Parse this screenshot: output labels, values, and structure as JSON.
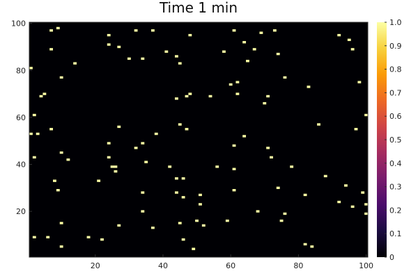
{
  "chart_data": {
    "type": "heatmap",
    "title": "Time 1 min",
    "xlabel": "",
    "ylabel": "",
    "xlim": [
      1,
      100
    ],
    "ylim": [
      1,
      100
    ],
    "x_ticks": [
      20,
      40,
      60,
      80,
      100
    ],
    "y_ticks": [
      20,
      40,
      60,
      80,
      100
    ],
    "x_tick_labels": [
      "20",
      "40",
      "60",
      "80",
      "100"
    ],
    "y_tick_labels": [
      "20",
      "40",
      "60",
      "80",
      "100"
    ],
    "grid": false,
    "background_value": 0,
    "cell_value": 1,
    "colorbar": {
      "range": [
        0,
        1
      ],
      "ticks": [
        0,
        0.1,
        0.2,
        0.3,
        0.4,
        0.5,
        0.6,
        0.7,
        0.8,
        0.9,
        1.0
      ],
      "tick_labels": [
        "0",
        "0.1",
        "0.2",
        "0.3",
        "0.4",
        "0.5",
        "0.6",
        "0.7",
        "0.8",
        "0.9",
        "1.0"
      ],
      "colormap": "inferno",
      "colors": [
        "#000004",
        "#1b0c41",
        "#4a0c6b",
        "#781c6d",
        "#a52c60",
        "#cf4446",
        "#ed6925",
        "#fb9b06",
        "#f7d13d",
        "#fcffa4"
      ]
    },
    "occupied_cells": [
      [
        1,
        81
      ],
      [
        1,
        53
      ],
      [
        2,
        61
      ],
      [
        2,
        43
      ],
      [
        2,
        9
      ],
      [
        3,
        53
      ],
      [
        4,
        69
      ],
      [
        5,
        70
      ],
      [
        7,
        97
      ],
      [
        7,
        89
      ],
      [
        7,
        55
      ],
      [
        6,
        9
      ],
      [
        8,
        33
      ],
      [
        9,
        98
      ],
      [
        9,
        29
      ],
      [
        10,
        77
      ],
      [
        10,
        45
      ],
      [
        10,
        15
      ],
      [
        10,
        5
      ],
      [
        12,
        42
      ],
      [
        14,
        83
      ],
      [
        18,
        9
      ],
      [
        21,
        33
      ],
      [
        22,
        8
      ],
      [
        24,
        95
      ],
      [
        24,
        91
      ],
      [
        24,
        49
      ],
      [
        24,
        43
      ],
      [
        25,
        39
      ],
      [
        26,
        39
      ],
      [
        26,
        37
      ],
      [
        27,
        90
      ],
      [
        27,
        56
      ],
      [
        27,
        14
      ],
      [
        30,
        85
      ],
      [
        32,
        97
      ],
      [
        32,
        47
      ],
      [
        34,
        85
      ],
      [
        34,
        49
      ],
      [
        34,
        28
      ],
      [
        34,
        20
      ],
      [
        35,
        41
      ],
      [
        37,
        97
      ],
      [
        37,
        13
      ],
      [
        38,
        53
      ],
      [
        41,
        88
      ],
      [
        42,
        39
      ],
      [
        44,
        86
      ],
      [
        44,
        68
      ],
      [
        44,
        34
      ],
      [
        44,
        28
      ],
      [
        45,
        83
      ],
      [
        45,
        57
      ],
      [
        45,
        15
      ],
      [
        46,
        34
      ],
      [
        46,
        26
      ],
      [
        46,
        8
      ],
      [
        47,
        69
      ],
      [
        47,
        55
      ],
      [
        48,
        95
      ],
      [
        48,
        70
      ],
      [
        49,
        4
      ],
      [
        50,
        16
      ],
      [
        51,
        27
      ],
      [
        51,
        23
      ],
      [
        52,
        14
      ],
      [
        54,
        69
      ],
      [
        56,
        39
      ],
      [
        58,
        88
      ],
      [
        59,
        16
      ],
      [
        60,
        74
      ],
      [
        61,
        97
      ],
      [
        61,
        48
      ],
      [
        61,
        38
      ],
      [
        61,
        29
      ],
      [
        62,
        75
      ],
      [
        62,
        70
      ],
      [
        64,
        92
      ],
      [
        64,
        52
      ],
      [
        65,
        84
      ],
      [
        67,
        89
      ],
      [
        68,
        20
      ],
      [
        69,
        96
      ],
      [
        70,
        66
      ],
      [
        71,
        69
      ],
      [
        71,
        47
      ],
      [
        72,
        43
      ],
      [
        73,
        97
      ],
      [
        74,
        87
      ],
      [
        74,
        30
      ],
      [
        75,
        16
      ],
      [
        76,
        77
      ],
      [
        76,
        19
      ],
      [
        78,
        39
      ],
      [
        82,
        27
      ],
      [
        82,
        6
      ],
      [
        83,
        73
      ],
      [
        84,
        5
      ],
      [
        86,
        57
      ],
      [
        88,
        35
      ],
      [
        92,
        95
      ],
      [
        92,
        24
      ],
      [
        94,
        31
      ],
      [
        95,
        93
      ],
      [
        96,
        89
      ],
      [
        96,
        22
      ],
      [
        97,
        55
      ],
      [
        98,
        75
      ],
      [
        99,
        28
      ],
      [
        100,
        61
      ],
      [
        100,
        23
      ],
      [
        100,
        19
      ]
    ]
  }
}
